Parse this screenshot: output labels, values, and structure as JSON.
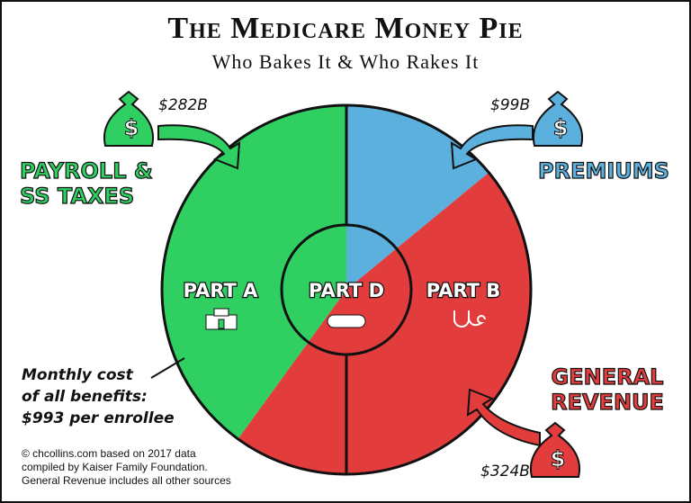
{
  "chart_data": {
    "type": "pie",
    "title": "The Medicare Money Pie",
    "subtitle": "Who Bakes It & Who Rakes It",
    "categories": [
      "PAYROLL & SS TAXES",
      "PREMIUMS",
      "GENERAL REVENUE"
    ],
    "values": [
      282,
      99,
      324
    ],
    "value_labels": [
      "$282B",
      "$99B",
      "$324B"
    ],
    "colors": [
      "#2fcf62",
      "#5bb0de",
      "#e23c3c"
    ],
    "parts": [
      "PART A",
      "PART D",
      "PART B"
    ],
    "note": [
      "Monthly cost",
      "of all benefits:",
      "$993 per enrollee"
    ],
    "source": [
      "© chcollins.com based on 2017 data",
      "compiled by Kaiser Family Foundation.",
      "General Revenue includes all other sources"
    ]
  }
}
